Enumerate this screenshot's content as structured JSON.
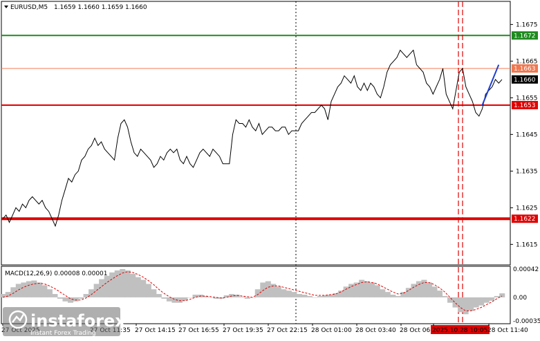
{
  "header": {
    "symbol_timeframe": "EURUSD,M5",
    "ohlc": "1.1659 1.1660 1.1659 1.1660"
  },
  "macd_header": "MACD(12,26,9) 0.00008 0.00001",
  "price_axis_ticks": [
    "1.1675",
    "1.1665",
    "1.1655",
    "1.1645",
    "1.1635",
    "1.1625",
    "1.1615"
  ],
  "macd_axis_ticks": [
    "0.00042",
    "0.00",
    "-0.00035"
  ],
  "time_axis_labels": [
    "27 Oct 2025",
    "27 Oct 11:35",
    "27 Oct 14:15",
    "27 Oct 16:55",
    "27 Oct 19:35",
    "27 Oct 22:15",
    "28 Oct 01:00",
    "28 Oct 03:40",
    "28 Oct 06:20",
    "2025.10.28 10:05",
    "28 Oct 11:40"
  ],
  "horizontal_levels": [
    {
      "label": "1.1672",
      "color": "#1e8a1e"
    },
    {
      "label": "1.1663",
      "color": "#f07850"
    },
    {
      "label": "1.1660",
      "color": "#000000"
    },
    {
      "label": "1.1653",
      "color": "#e00000"
    },
    {
      "label": "1.1622",
      "color": "#e00000"
    }
  ],
  "chart_data": {
    "type": "line",
    "title": "EURUSD,M5",
    "ylim": [
      1.16094,
      1.16813
    ],
    "series": [
      {
        "name": "EURUSD,M5",
        "color": "#000000",
        "values": [
          1.1622,
          1.1623,
          1.1621,
          1.1623,
          1.1625,
          1.1624,
          1.1626,
          1.1625,
          1.1627,
          1.1628,
          1.1627,
          1.1626,
          1.1627,
          1.1625,
          1.1624,
          1.1622,
          1.162,
          1.1623,
          1.1627,
          1.163,
          1.1633,
          1.1632,
          1.1634,
          1.1635,
          1.1638,
          1.1639,
          1.1641,
          1.1642,
          1.1644,
          1.1642,
          1.1643,
          1.1641,
          1.164,
          1.1639,
          1.1638,
          1.1644,
          1.1648,
          1.1649,
          1.1647,
          1.1643,
          1.164,
          1.1639,
          1.1641,
          1.164,
          1.1639,
          1.1638,
          1.1636,
          1.1637,
          1.1639,
          1.1638,
          1.164,
          1.1641,
          1.164,
          1.1641,
          1.1638,
          1.1637,
          1.1639,
          1.1637,
          1.1636,
          1.1638,
          1.164,
          1.1641,
          1.164,
          1.1639,
          1.1641,
          1.164,
          1.1639,
          1.1637,
          1.1637,
          1.1637,
          1.1645,
          1.1649,
          1.1648,
          1.1648,
          1.1647,
          1.1649,
          1.1647,
          1.1646,
          1.1648,
          1.1645,
          1.1646,
          1.1647,
          1.1647,
          1.1646,
          1.1646,
          1.1647,
          1.1647,
          1.1645,
          1.1646,
          1.1646,
          1.1646,
          1.1648,
          1.1649,
          1.165,
          1.1651,
          1.1651,
          1.1652,
          1.1653,
          1.1652,
          1.1649,
          1.1654,
          1.1656,
          1.1658,
          1.1659,
          1.1661,
          1.166,
          1.1659,
          1.1661,
          1.1658,
          1.1657,
          1.1659,
          1.1657,
          1.1659,
          1.1658,
          1.1656,
          1.1655,
          1.1658,
          1.1662,
          1.1664,
          1.1665,
          1.1666,
          1.1668,
          1.1667,
          1.1666,
          1.1667,
          1.1668,
          1.1664,
          1.1663,
          1.1662,
          1.1659,
          1.1658,
          1.1656,
          1.1658,
          1.166,
          1.1663,
          1.1656,
          1.1654,
          1.1652,
          1.1657,
          1.1662,
          1.1663,
          1.1658,
          1.1656,
          1.1654,
          1.1651,
          1.165,
          1.1652,
          1.1656,
          1.1657,
          1.1658,
          1.166,
          1.1659,
          1.166
        ]
      },
      {
        "name": "",
        "color": "#1f3fd0",
        "values_x_index": [
          146,
          151
        ],
        "values": [
          1.1653,
          1.1664
        ]
      }
    ]
  },
  "macd_data": {
    "ylim": [
      -0.00035,
      0.00042
    ],
    "histogram": [
      5e-05,
      8e-05,
      0.00015,
      0.0002,
      0.00022,
      0.00024,
      0.00025,
      0.00022,
      0.00018,
      0.00012,
      5e-05,
      -2e-05,
      -6e-05,
      -8e-05,
      -6e-05,
      -2e-05,
      5e-05,
      0.00012,
      0.0002,
      0.00027,
      0.00032,
      0.00037,
      0.0004,
      0.00042,
      0.0004,
      0.00035,
      0.0003,
      0.00026,
      0.0002,
      0.00012,
      5e-05,
      -2e-05,
      -6e-05,
      -8e-05,
      -8e-05,
      -5e-05,
      0.0,
      4e-05,
      4e-05,
      2e-05,
      0.0,
      -2e-05,
      -2e-05,
      3e-05,
      5e-05,
      4e-05,
      1e-05,
      -2e-05,
      0.0,
      0.00012,
      0.00022,
      0.00024,
      0.0002,
      0.00016,
      0.00012,
      0.0001,
      8e-05,
      5e-05,
      4e-05,
      2e-05,
      0.0,
      2e-05,
      3e-05,
      4e-05,
      6e-05,
      0.0001,
      0.00016,
      0.0002,
      0.00022,
      0.00026,
      0.00024,
      0.00022,
      0.00018,
      0.00012,
      8e-05,
      4e-05,
      2e-05,
      8e-05,
      0.00014,
      0.0002,
      0.00024,
      0.00026,
      0.00022,
      0.00016,
      0.0001,
      2e-05,
      -8e-05,
      -0.00015,
      -0.00022,
      -0.00025,
      -0.0002,
      -0.00015,
      -0.00012,
      -8e-05,
      -5e-05,
      2e-05,
      6e-05
    ],
    "signal": [
      0.0,
      2e-05,
      6e-05,
      0.00011,
      0.00015,
      0.00018,
      0.0002,
      0.00021,
      0.0002,
      0.00017,
      0.00013,
      8e-05,
      3e-05,
      -2e-05,
      -4e-05,
      -4e-05,
      -1e-05,
      4e-05,
      0.0001,
      0.00016,
      0.00022,
      0.00027,
      0.00032,
      0.00036,
      0.00038,
      0.00037,
      0.00034,
      0.0003,
      0.00025,
      0.00019,
      0.00012,
      6e-05,
      1e-05,
      -3e-05,
      -5e-05,
      -5e-05,
      -3e-05,
      0.0,
      2e-05,
      2e-05,
      1e-05,
      0.0,
      -1e-05,
      0.0,
      2e-05,
      3e-05,
      2e-05,
      1e-05,
      0.0,
      4e-05,
      0.0001,
      0.00015,
      0.00017,
      0.00017,
      0.00015,
      0.00013,
      0.00011,
      9e-05,
      7e-05,
      5e-05,
      3e-05,
      3e-05,
      3e-05,
      4e-05,
      5e-05,
      8e-05,
      0.00012,
      0.00016,
      0.00019,
      0.00022,
      0.00023,
      0.00022,
      0.0002,
      0.00016,
      0.00012,
      8e-05,
      5e-05,
      6e-05,
      0.0001,
      0.00015,
      0.00019,
      0.00022,
      0.00022,
      0.00019,
      0.00014,
      8e-05,
      0.0,
      -8e-05,
      -0.00015,
      -0.0002,
      -0.0002,
      -0.00018,
      -0.00015,
      -0.00011,
      -7e-05,
      -2e-05,
      2e-05
    ]
  },
  "logo": {
    "brand": "instaforex",
    "tagline": "Instant Forex Trading"
  },
  "colors": {
    "grid": "#d6d6d6",
    "price_line": "#000000",
    "macd_hist": "#c0c0c0",
    "macd_signal": "#e00000",
    "vline_red": "#e00000",
    "time_highlight_bg": "#e00000"
  }
}
